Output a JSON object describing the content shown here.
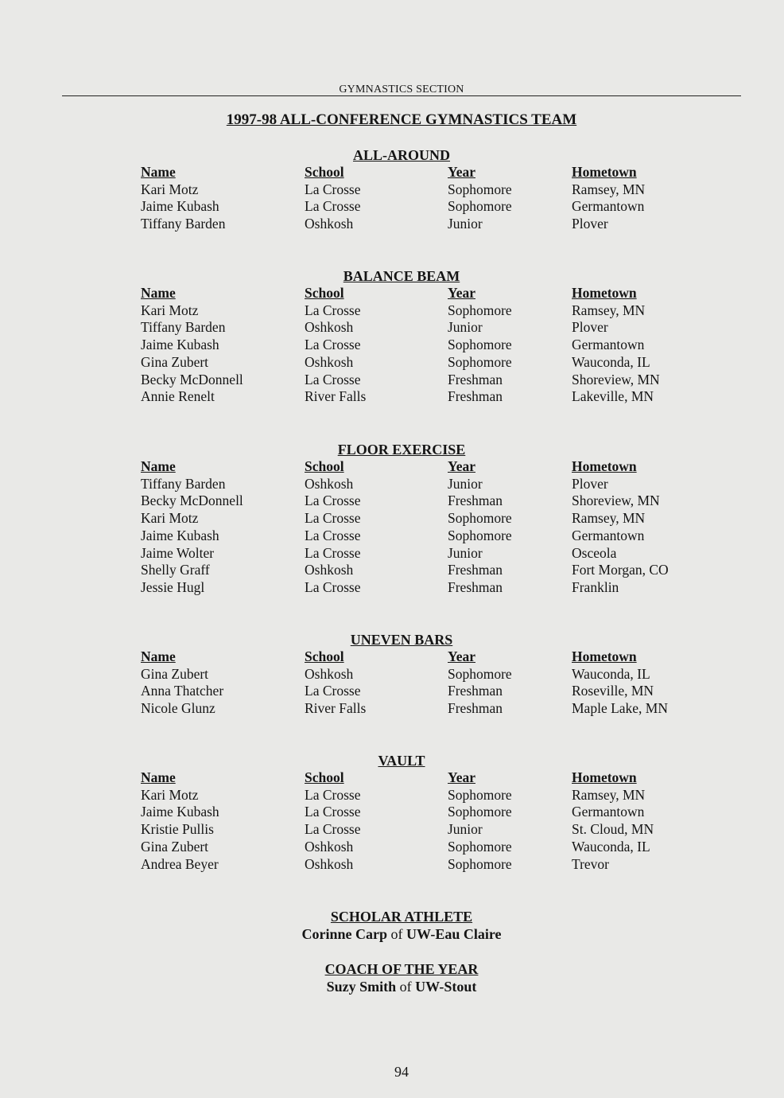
{
  "running_header": "GYMNASTICS SECTION",
  "title": "1997-98 ALL-CONFERENCE GYMNASTICS TEAM",
  "columns": [
    "Name",
    "School",
    "Year",
    "Hometown"
  ],
  "sections": [
    {
      "title": "ALL-AROUND",
      "rows": [
        [
          "Kari Motz",
          "La Crosse",
          "Sophomore",
          "Ramsey, MN"
        ],
        [
          "Jaime Kubash",
          "La Crosse",
          "Sophomore",
          "Germantown"
        ],
        [
          "Tiffany Barden",
          "Oshkosh",
          "Junior",
          "Plover"
        ]
      ]
    },
    {
      "title": "BALANCE BEAM",
      "rows": [
        [
          "Kari Motz",
          "La Crosse",
          "Sophomore",
          "Ramsey, MN"
        ],
        [
          "Tiffany Barden",
          "Oshkosh",
          "Junior",
          "Plover"
        ],
        [
          "Jaime Kubash",
          "La Crosse",
          "Sophomore",
          "Germantown"
        ],
        [
          "Gina Zubert",
          "Oshkosh",
          "Sophomore",
          "Wauconda, IL"
        ],
        [
          "Becky McDonnell",
          "La Crosse",
          "Freshman",
          "Shoreview, MN"
        ],
        [
          "Annie Renelt",
          "River Falls",
          "Freshman",
          "Lakeville, MN"
        ]
      ]
    },
    {
      "title": "FLOOR EXERCISE",
      "rows": [
        [
          "Tiffany Barden",
          "Oshkosh",
          "Junior",
          "Plover"
        ],
        [
          "Becky McDonnell",
          "La Crosse",
          "Freshman",
          "Shoreview, MN"
        ],
        [
          "Kari Motz",
          "La Crosse",
          "Sophomore",
          "Ramsey, MN"
        ],
        [
          "Jaime Kubash",
          "La Crosse",
          "Sophomore",
          "Germantown"
        ],
        [
          "Jaime Wolter",
          "La Crosse",
          "Junior",
          "Osceola"
        ],
        [
          "Shelly Graff",
          "Oshkosh",
          "Freshman",
          "Fort Morgan, CO"
        ],
        [
          "Jessie Hugl",
          "La Crosse",
          "Freshman",
          "Franklin"
        ]
      ]
    },
    {
      "title": "UNEVEN BARS",
      "rows": [
        [
          "Gina Zubert",
          "Oshkosh",
          "Sophomore",
          "Wauconda, IL"
        ],
        [
          "Anna Thatcher",
          "La Crosse",
          "Freshman",
          "Roseville, MN"
        ],
        [
          "Nicole Glunz",
          "River Falls",
          "Freshman",
          "Maple Lake, MN"
        ]
      ]
    },
    {
      "title": "VAULT",
      "rows": [
        [
          "Kari Motz",
          "La Crosse",
          "Sophomore",
          "Ramsey, MN"
        ],
        [
          "Jaime Kubash",
          "La Crosse",
          "Sophomore",
          "Germantown"
        ],
        [
          "Kristie Pullis",
          "La Crosse",
          "Junior",
          "St. Cloud, MN"
        ],
        [
          "Gina Zubert",
          "Oshkosh",
          "Sophomore",
          "Wauconda, IL"
        ],
        [
          "Andrea Beyer",
          "Oshkosh",
          "Sophomore",
          "Trevor"
        ]
      ]
    }
  ],
  "awards": [
    {
      "title": "SCHOLAR ATHLETE",
      "person": "Corinne Carp",
      "of": "of",
      "school": "UW-Eau Claire"
    },
    {
      "title": "COACH OF THE YEAR",
      "person": "Suzy Smith",
      "of": "of",
      "school": "UW-Stout"
    }
  ],
  "page_number": "94"
}
